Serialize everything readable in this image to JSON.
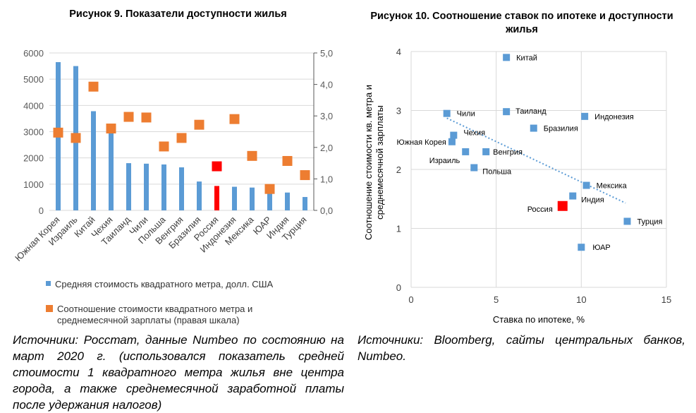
{
  "figures": {
    "fig9_title": "Рисунок 9. Показатели доступности жилья",
    "fig10_title": "Рисунок 10. Соотношение ставок по ипотеке и доступности жилья",
    "fig9_source": "Источники: Росстат, данные Numbeo по состоянию на март 2020 г. (использовался показатель средней стоимости 1 квадратного метра жилья вне центра города, а также среднемесячной заработной платы после удержания налогов)",
    "fig10_source": "Источники: Bloomberg, сайты центральных банков, Numbeo."
  },
  "chart_data": [
    {
      "type": "bar",
      "categories": [
        "Южная Корея",
        "Израиль",
        "Китай",
        "Чехия",
        "Таиланд",
        "Чили",
        "Польша",
        "Венгрия",
        "Бразилия",
        "Россия",
        "Индонезия",
        "Мексика",
        "ЮАР",
        "Индия",
        "Турция"
      ],
      "series": [
        {
          "name": "Средняя стоимость квадратного метра, долл. США",
          "kind": "bar",
          "axis": "left",
          "color": "#5b9bd5",
          "highlight_index": 9,
          "highlight_color": "#ff0000",
          "values": [
            5650,
            5500,
            3780,
            3000,
            1800,
            1780,
            1750,
            1640,
            1100,
            930,
            900,
            870,
            870,
            680,
            510
          ]
        },
        {
          "name": "Соотношение стоимости квадратного метра и среднемесячной зарплаты (правая шкала)",
          "kind": "marker",
          "axis": "right",
          "color": "#ed7d31",
          "highlight_index": 9,
          "highlight_color": "#ff0000",
          "values": [
            2.47,
            2.3,
            3.93,
            2.6,
            2.97,
            2.95,
            2.03,
            2.3,
            2.72,
            1.4,
            2.9,
            1.73,
            0.68,
            1.57,
            1.12
          ]
        }
      ],
      "y_left": {
        "lim": [
          0,
          6000
        ],
        "ticks": [
          "0",
          "1000",
          "2000",
          "3000",
          "4000",
          "5000",
          "6000"
        ]
      },
      "y_right": {
        "lim": [
          0,
          5
        ],
        "ticks": [
          "0,0",
          "1,0",
          "2,0",
          "3,0",
          "4,0",
          "5,0"
        ]
      },
      "grid": "horizontal"
    },
    {
      "type": "scatter",
      "xlabel": "Ставка по ипотеке, %",
      "ylabel": "Соотношение стоимости кв. метра и среднемесячной зарплаты",
      "xlim": [
        0,
        15
      ],
      "ylim": [
        0,
        4
      ],
      "x_ticks": [
        "0",
        "5",
        "10",
        "15"
      ],
      "y_ticks": [
        "0",
        "1",
        "2",
        "3",
        "4"
      ],
      "grid": "both",
      "color": "#5b9bd5",
      "highlight_color": "#ff0000",
      "trendline": {
        "style": "dotted",
        "color": "#5b9bd5",
        "from": [
          2.1,
          2.87
        ],
        "to": [
          12.6,
          1.43
        ]
      },
      "points": [
        {
          "label": "Китай",
          "x": 5.6,
          "y": 3.9
        },
        {
          "label": "Чили",
          "x": 2.1,
          "y": 2.95
        },
        {
          "label": "Таиланд",
          "x": 5.6,
          "y": 2.98
        },
        {
          "label": "Индонезия",
          "x": 10.2,
          "y": 2.9
        },
        {
          "label": "Бразилия",
          "x": 7.2,
          "y": 2.7
        },
        {
          "label": "Чехия",
          "x": 2.5,
          "y": 2.58
        },
        {
          "label": "Южная Корея",
          "x": 2.4,
          "y": 2.47
        },
        {
          "label": "Израиль",
          "x": 3.2,
          "y": 2.3
        },
        {
          "label": "Венгрия",
          "x": 4.4,
          "y": 2.3
        },
        {
          "label": "Польша",
          "x": 3.7,
          "y": 2.03
        },
        {
          "label": "Мексика",
          "x": 10.3,
          "y": 1.73
        },
        {
          "label": "Индия",
          "x": 9.5,
          "y": 1.55
        },
        {
          "label": "Россия",
          "x": 8.9,
          "y": 1.38,
          "highlight": true
        },
        {
          "label": "Турция",
          "x": 12.7,
          "y": 1.12
        },
        {
          "label": "ЮАР",
          "x": 10.0,
          "y": 0.68
        }
      ]
    }
  ]
}
